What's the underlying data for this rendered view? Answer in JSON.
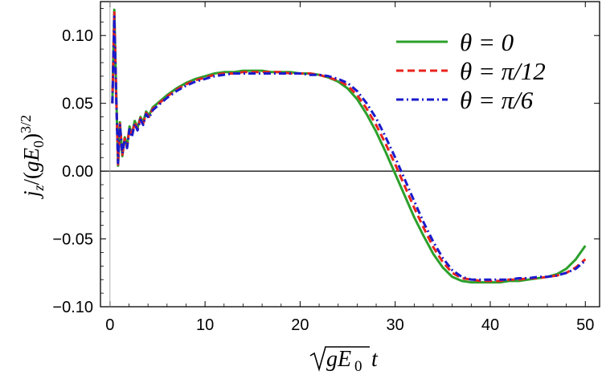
{
  "chart_data": {
    "type": "line",
    "title": "",
    "xlabel": "√(gE₀) t",
    "ylabel": "j_z/(gE₀)^{3/2}",
    "xlim": [
      -1,
      51.5
    ],
    "ylim": [
      -0.1,
      0.125
    ],
    "x_ticks": [
      0,
      10,
      20,
      30,
      40,
      50
    ],
    "x_tick_labels": [
      "0",
      "10",
      "20",
      "30",
      "40",
      "50"
    ],
    "y_ticks": [
      0.1,
      0.05,
      0.0,
      -0.05,
      -0.1
    ],
    "y_tick_labels": [
      "0.10",
      "0.05",
      "0.00",
      "−0.05",
      "−0.10"
    ],
    "grid": false,
    "zero_line": true,
    "legend_position": "top-right",
    "series": [
      {
        "name": "θ = 0",
        "color": "#2ca02c",
        "dash": "solid",
        "x": [
          0.25,
          0.45,
          0.65,
          0.85,
          1.05,
          1.3,
          1.55,
          1.8,
          2.05,
          2.3,
          2.6,
          2.9,
          3.2,
          3.5,
          3.8,
          4.1,
          4.5,
          5,
          6,
          7,
          8,
          9,
          10,
          11,
          12,
          13,
          14,
          15,
          16,
          17,
          18,
          19,
          20,
          21,
          22,
          23,
          24,
          25,
          26,
          27,
          28,
          29,
          30,
          31,
          32,
          33,
          34,
          35,
          36,
          37,
          38,
          39,
          40,
          41,
          42,
          43,
          44,
          45,
          46,
          47,
          48,
          49,
          50
        ],
        "y": [
          0.05,
          0.119,
          0.06,
          0.004,
          0.036,
          0.011,
          0.025,
          0.018,
          0.033,
          0.027,
          0.037,
          0.032,
          0.04,
          0.036,
          0.044,
          0.041,
          0.047,
          0.05,
          0.056,
          0.061,
          0.065,
          0.068,
          0.07,
          0.072,
          0.073,
          0.073,
          0.074,
          0.074,
          0.074,
          0.073,
          0.073,
          0.073,
          0.072,
          0.072,
          0.071,
          0.069,
          0.066,
          0.061,
          0.053,
          0.042,
          0.029,
          0.014,
          -0.002,
          -0.018,
          -0.034,
          -0.048,
          -0.061,
          -0.071,
          -0.078,
          -0.081,
          -0.082,
          -0.082,
          -0.082,
          -0.082,
          -0.081,
          -0.081,
          -0.08,
          -0.079,
          -0.078,
          -0.076,
          -0.072,
          -0.065,
          -0.055
        ]
      },
      {
        "name": "θ = π/12",
        "color": "#e8231d",
        "dash": "dashed",
        "x": [
          0.25,
          0.45,
          0.65,
          0.85,
          1.05,
          1.3,
          1.55,
          1.8,
          2.05,
          2.3,
          2.6,
          2.9,
          3.2,
          3.5,
          3.8,
          4.1,
          4.5,
          5,
          6,
          7,
          8,
          9,
          10,
          11,
          12,
          13,
          14,
          15,
          16,
          17,
          18,
          19,
          20,
          21,
          22,
          23,
          24,
          25,
          26,
          27,
          28,
          29,
          30,
          31,
          32,
          33,
          34,
          35,
          36,
          37,
          38,
          39,
          40,
          41,
          42,
          43,
          44,
          45,
          46,
          47,
          48,
          49,
          50
        ],
        "y": [
          0.05,
          0.117,
          0.058,
          0.005,
          0.035,
          0.012,
          0.024,
          0.018,
          0.032,
          0.026,
          0.036,
          0.031,
          0.039,
          0.035,
          0.043,
          0.04,
          0.046,
          0.049,
          0.055,
          0.06,
          0.064,
          0.067,
          0.069,
          0.071,
          0.072,
          0.072,
          0.073,
          0.073,
          0.073,
          0.073,
          0.073,
          0.072,
          0.072,
          0.072,
          0.071,
          0.069,
          0.067,
          0.063,
          0.056,
          0.046,
          0.034,
          0.02,
          0.005,
          -0.011,
          -0.027,
          -0.042,
          -0.056,
          -0.067,
          -0.075,
          -0.079,
          -0.08,
          -0.081,
          -0.081,
          -0.081,
          -0.08,
          -0.08,
          -0.079,
          -0.079,
          -0.078,
          -0.077,
          -0.075,
          -0.071,
          -0.065
        ]
      },
      {
        "name": "θ = π/6",
        "color": "#1a1acc",
        "dash": "dashdot",
        "x": [
          0.25,
          0.45,
          0.65,
          0.85,
          1.05,
          1.3,
          1.55,
          1.8,
          2.05,
          2.3,
          2.6,
          2.9,
          3.2,
          3.5,
          3.8,
          4.1,
          4.5,
          5,
          6,
          7,
          8,
          9,
          10,
          11,
          12,
          13,
          14,
          15,
          16,
          17,
          18,
          19,
          20,
          21,
          22,
          23,
          24,
          25,
          26,
          27,
          28,
          29,
          30,
          31,
          32,
          33,
          34,
          35,
          36,
          37,
          38,
          39,
          40,
          41,
          42,
          43,
          44,
          45,
          46,
          47,
          48,
          49,
          50
        ],
        "y": [
          0.05,
          0.114,
          0.056,
          0.006,
          0.034,
          0.013,
          0.023,
          0.017,
          0.031,
          0.025,
          0.035,
          0.03,
          0.038,
          0.034,
          0.042,
          0.039,
          0.045,
          0.048,
          0.054,
          0.059,
          0.063,
          0.066,
          0.068,
          0.07,
          0.071,
          0.072,
          0.072,
          0.072,
          0.072,
          0.072,
          0.072,
          0.072,
          0.072,
          0.071,
          0.071,
          0.07,
          0.068,
          0.065,
          0.059,
          0.05,
          0.039,
          0.025,
          0.01,
          -0.006,
          -0.022,
          -0.038,
          -0.052,
          -0.064,
          -0.073,
          -0.078,
          -0.08,
          -0.08,
          -0.08,
          -0.08,
          -0.08,
          -0.079,
          -0.079,
          -0.078,
          -0.078,
          -0.077,
          -0.075,
          -0.072,
          -0.066
        ]
      }
    ]
  }
}
